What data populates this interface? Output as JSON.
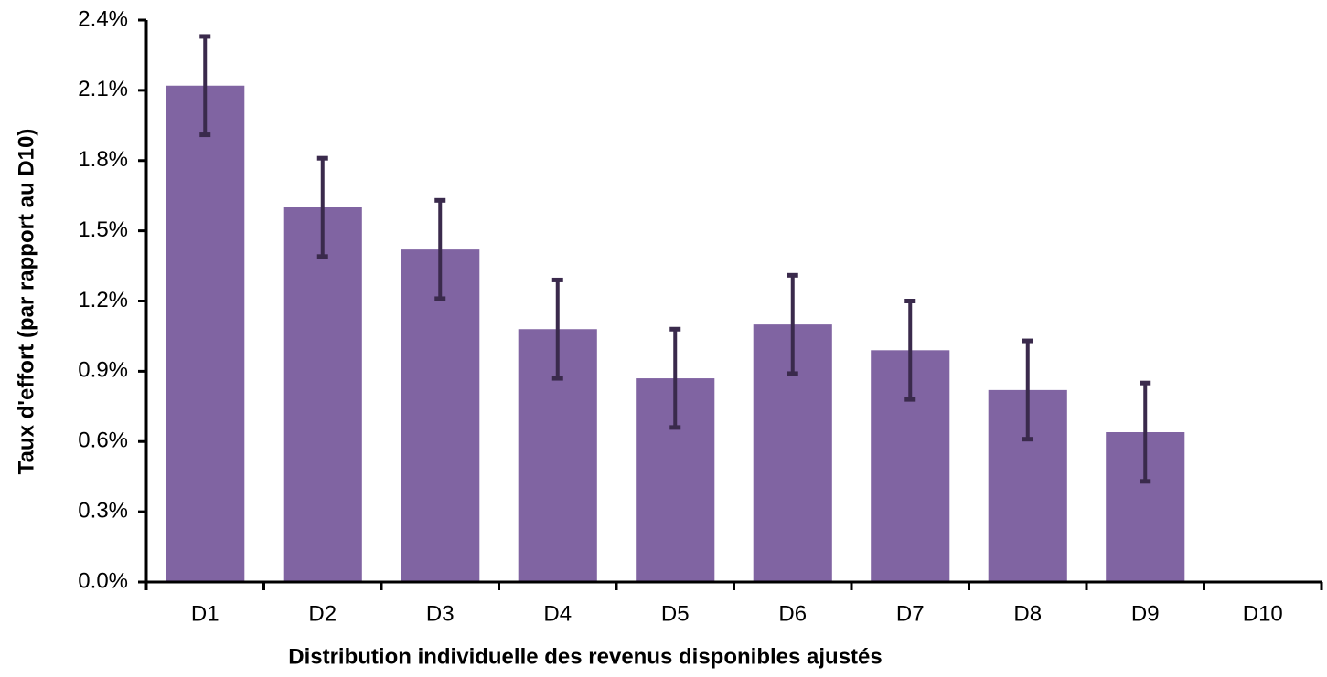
{
  "chart_data": {
    "type": "bar",
    "ylabel": "Taux d'effort (par rapport au D10)",
    "xlabel": "Distribution individuelle des revenus disponibles ajustés",
    "categories": [
      "D1",
      "D2",
      "D3",
      "D4",
      "D5",
      "D6",
      "D7",
      "D8",
      "D9",
      "D10"
    ],
    "values": [
      2.12,
      1.6,
      1.42,
      1.08,
      0.87,
      1.1,
      0.99,
      0.82,
      0.64,
      0
    ],
    "errors": [
      0.21,
      0.21,
      0.21,
      0.21,
      0.21,
      0.21,
      0.21,
      0.21,
      0.21,
      null
    ],
    "color": "#8064a2",
    "error_color": "#3a2a4c",
    "ylim": [
      0,
      2.4
    ],
    "yticks": [
      {
        "value": 0,
        "label": "0.0%"
      },
      {
        "value": 0.3,
        "label": "0.3%"
      },
      {
        "value": 0.6,
        "label": "0.6%"
      },
      {
        "value": 0.9,
        "label": "0.9%"
      },
      {
        "value": 1.2,
        "label": "1.2%"
      },
      {
        "value": 1.5,
        "label": "1.5%"
      },
      {
        "value": 1.8,
        "label": "1.8%"
      },
      {
        "value": 2.1,
        "label": "2.1%"
      },
      {
        "value": 2.4,
        "label": "2.4%"
      }
    ],
    "grid": false
  }
}
